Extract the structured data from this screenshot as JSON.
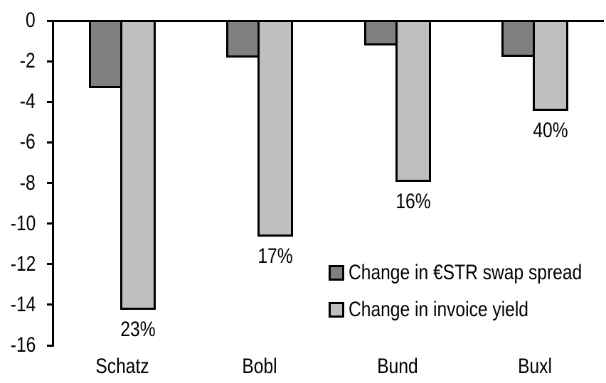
{
  "chart_data": {
    "type": "bar",
    "orientation": "vertical",
    "title": "",
    "categories": [
      "Schatz",
      "Bobl",
      "Bund",
      "Buxl"
    ],
    "series": [
      {
        "name": "Change in €STR swap spread",
        "color": "#808080",
        "values": [
          -3.3,
          -1.8,
          -1.2,
          -1.75
        ]
      },
      {
        "name": "Change in invoice yield",
        "color": "#bfbfbf",
        "values": [
          -14.2,
          -10.6,
          -7.9,
          -4.4
        ],
        "data_labels": [
          "23%",
          "17%",
          "16%",
          "40%"
        ]
      }
    ],
    "y_axis": {
      "min": -16,
      "max": 0,
      "tick_step": 2,
      "tick_labels": [
        "0",
        "-2",
        "-4",
        "-6",
        "-8",
        "-10",
        "-12",
        "-14",
        "-16"
      ]
    },
    "legend": {
      "position": "inside-right-middle"
    },
    "grid": false,
    "axis_color": "#000000",
    "text_color": "#000000",
    "background_color": "#ffffff"
  }
}
